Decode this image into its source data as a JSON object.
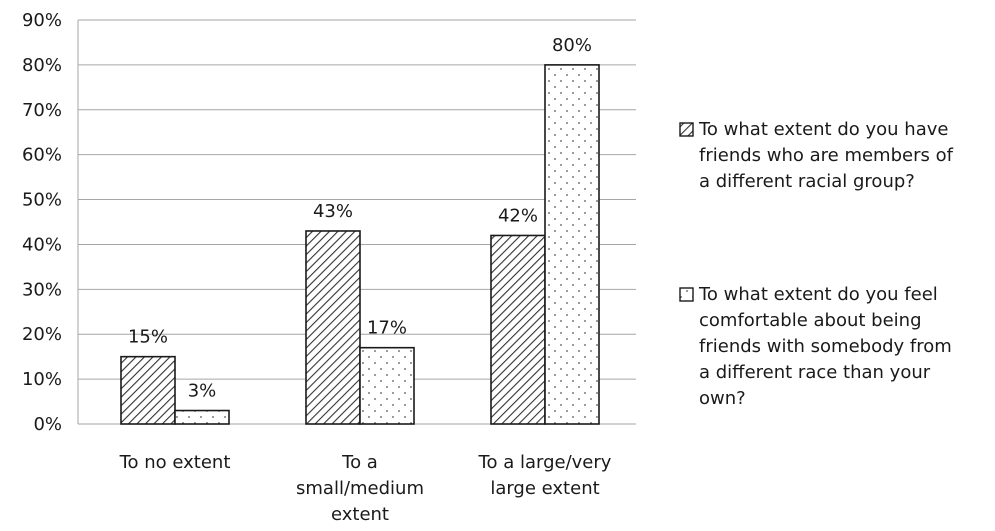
{
  "chart_data": {
    "type": "bar",
    "categories": [
      [
        "To no extent"
      ],
      [
        "To a",
        "small/medium",
        "extent"
      ],
      [
        "To a large/very",
        "large extent"
      ]
    ],
    "series": [
      {
        "name": "To what extent do you have friends who are members of a different racial group?",
        "legend_lines": [
          "To what extent do you have",
          "friends who are members of",
          "a different racial group?"
        ],
        "values": [
          15,
          43,
          42
        ],
        "labels": [
          "15%",
          "43%",
          "42%"
        ],
        "pattern": "hatch"
      },
      {
        "name": "To what extent do you feel comfortable about being friends with somebody from a different race than your own?",
        "legend_lines": [
          "To what extent do you feel",
          "comfortable about being",
          "friends with somebody from",
          "a different race than your",
          "own?"
        ],
        "values": [
          3,
          17,
          80
        ],
        "labels": [
          "3%",
          "17%",
          "80%"
        ],
        "pattern": "dots"
      }
    ],
    "ylim": [
      0,
      90
    ],
    "yticks": [
      0,
      10,
      20,
      30,
      40,
      50,
      60,
      70,
      80,
      90
    ],
    "ytick_labels": [
      "0%",
      "10%",
      "20%",
      "30%",
      "40%",
      "50%",
      "60%",
      "70%",
      "80%",
      "90%"
    ],
    "grid": true,
    "legend_position": "right",
    "colors": {
      "bar_edge": "#1a1a1a",
      "grid": "#a6a6a6",
      "hatch": "#333333",
      "dots": "#555555"
    }
  }
}
